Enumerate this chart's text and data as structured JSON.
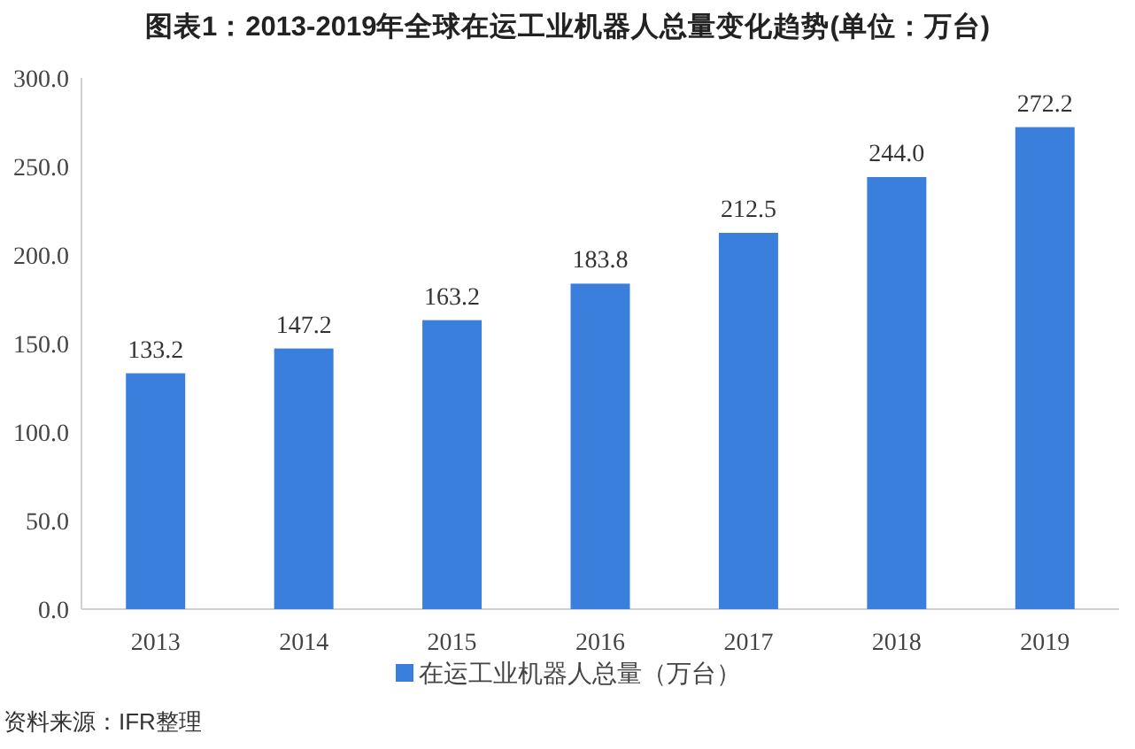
{
  "chart_data": {
    "type": "bar",
    "title": "图表1：2013-2019年全球在运工业机器人总量变化趋势(单位：万台)",
    "categories": [
      "2013",
      "2014",
      "2015",
      "2016",
      "2017",
      "2018",
      "2019"
    ],
    "series": [
      {
        "name": "在运工业机器人总量（万台）",
        "color": "#3b7fdc",
        "values": [
          133.2,
          147.2,
          163.2,
          183.8,
          212.5,
          244.0,
          272.2
        ],
        "value_labels": [
          "133.2",
          "147.2",
          "163.2",
          "183.8",
          "212.5",
          "244.0",
          "272.2"
        ]
      }
    ],
    "ylim": [
      0,
      300
    ],
    "yticks": [
      {
        "value": 0,
        "label": "0.0"
      },
      {
        "value": 50,
        "label": "50.0"
      },
      {
        "value": 100,
        "label": "100.0"
      },
      {
        "value": 150,
        "label": "150.0"
      },
      {
        "value": 200,
        "label": "200.0"
      },
      {
        "value": 250,
        "label": "250.0"
      },
      {
        "value": 300,
        "label": "300.0"
      }
    ],
    "legend": "bottom",
    "annotations": [
      "资料来源：IFR整理"
    ]
  }
}
